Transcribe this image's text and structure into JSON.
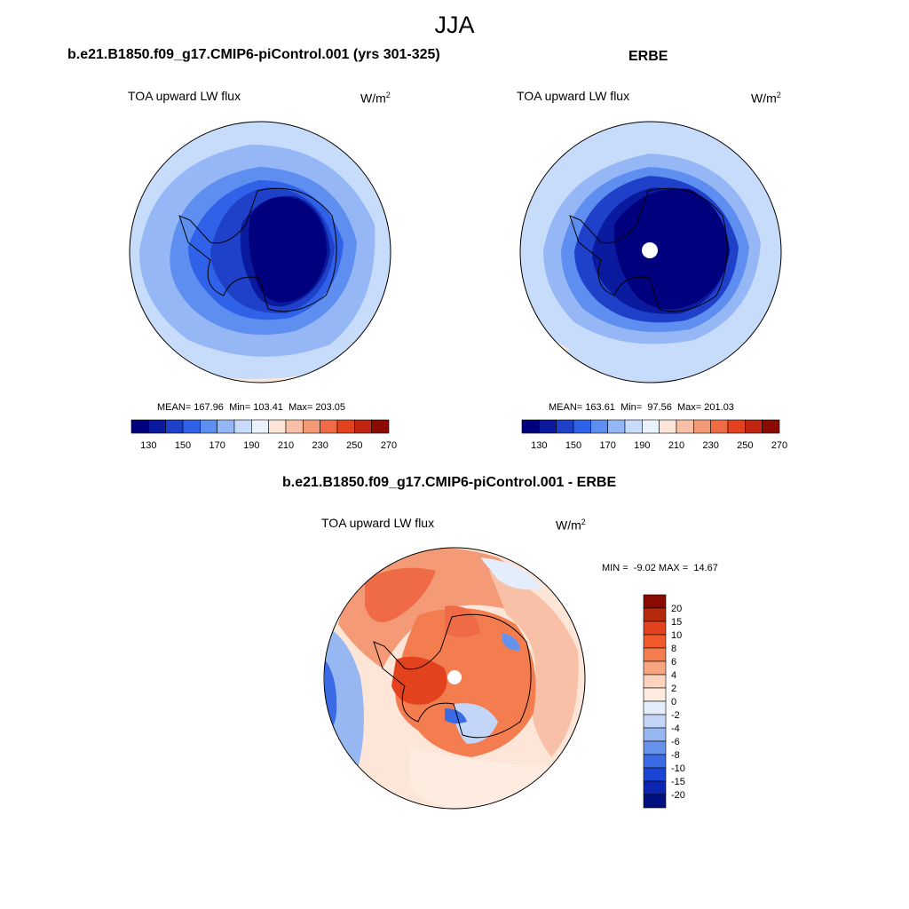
{
  "figure": {
    "season": "JJA",
    "case_title": "b.e21.B1850.f09_g17.CMIP6-piControl.001 (yrs 301-325)",
    "obs_title": "ERBE",
    "diff_title": "b.e21.B1850.f09_g17.CMIP6-piControl.001 - ERBE"
  },
  "panels": {
    "model": {
      "variable": "TOA upward LW flux",
      "units_base": "W/m",
      "units_exp": "2",
      "mean_label": "MEAN=",
      "mean": "167.96",
      "min_label": "Min=",
      "min": "103.41",
      "max_label": "Max=",
      "max": "203.05"
    },
    "obs": {
      "variable": "TOA upward LW flux",
      "units_base": "W/m",
      "units_exp": "2",
      "mean_label": "MEAN=",
      "mean": "163.61",
      "min_label": "Min=",
      "min": "97.56",
      "max_label": "Max=",
      "max": "201.03"
    },
    "diff": {
      "variable": "TOA upward LW flux",
      "units_base": "W/m",
      "units_exp": "2",
      "min_label": "MIN =",
      "min": "-9.02",
      "max_label": "MAX =",
      "max": "14.67"
    }
  },
  "colorbar_abs": {
    "colors": [
      "#00007f",
      "#0a1a9e",
      "#1f40c8",
      "#2f62e8",
      "#5d8ef0",
      "#96b7f6",
      "#c7dbfb",
      "#eaf2fd",
      "#fde5d8",
      "#f8c0a6",
      "#f49a77",
      "#ef6b45",
      "#e3421f",
      "#c02610",
      "#8a0a00"
    ],
    "tick_labels": [
      "130",
      "150",
      "170",
      "190",
      "210",
      "230",
      "250",
      "270"
    ]
  },
  "colorbar_diff": {
    "colors": [
      "#8a0a00",
      "#b52a0c",
      "#e3421f",
      "#f05a2a",
      "#f47d50",
      "#f8a582",
      "#fcd3bd",
      "#fdecdf",
      "#e3edfc",
      "#c3d6f8",
      "#97b7f3",
      "#6692ec",
      "#3a6be4",
      "#1b45d5",
      "#0c25b0",
      "#00107f"
    ],
    "tick_labels": [
      "20",
      "15",
      "10",
      "8",
      "6",
      "4",
      "2",
      "0",
      "-2",
      "-4",
      "-6",
      "-8",
      "-10",
      "-15",
      "-20"
    ]
  }
}
